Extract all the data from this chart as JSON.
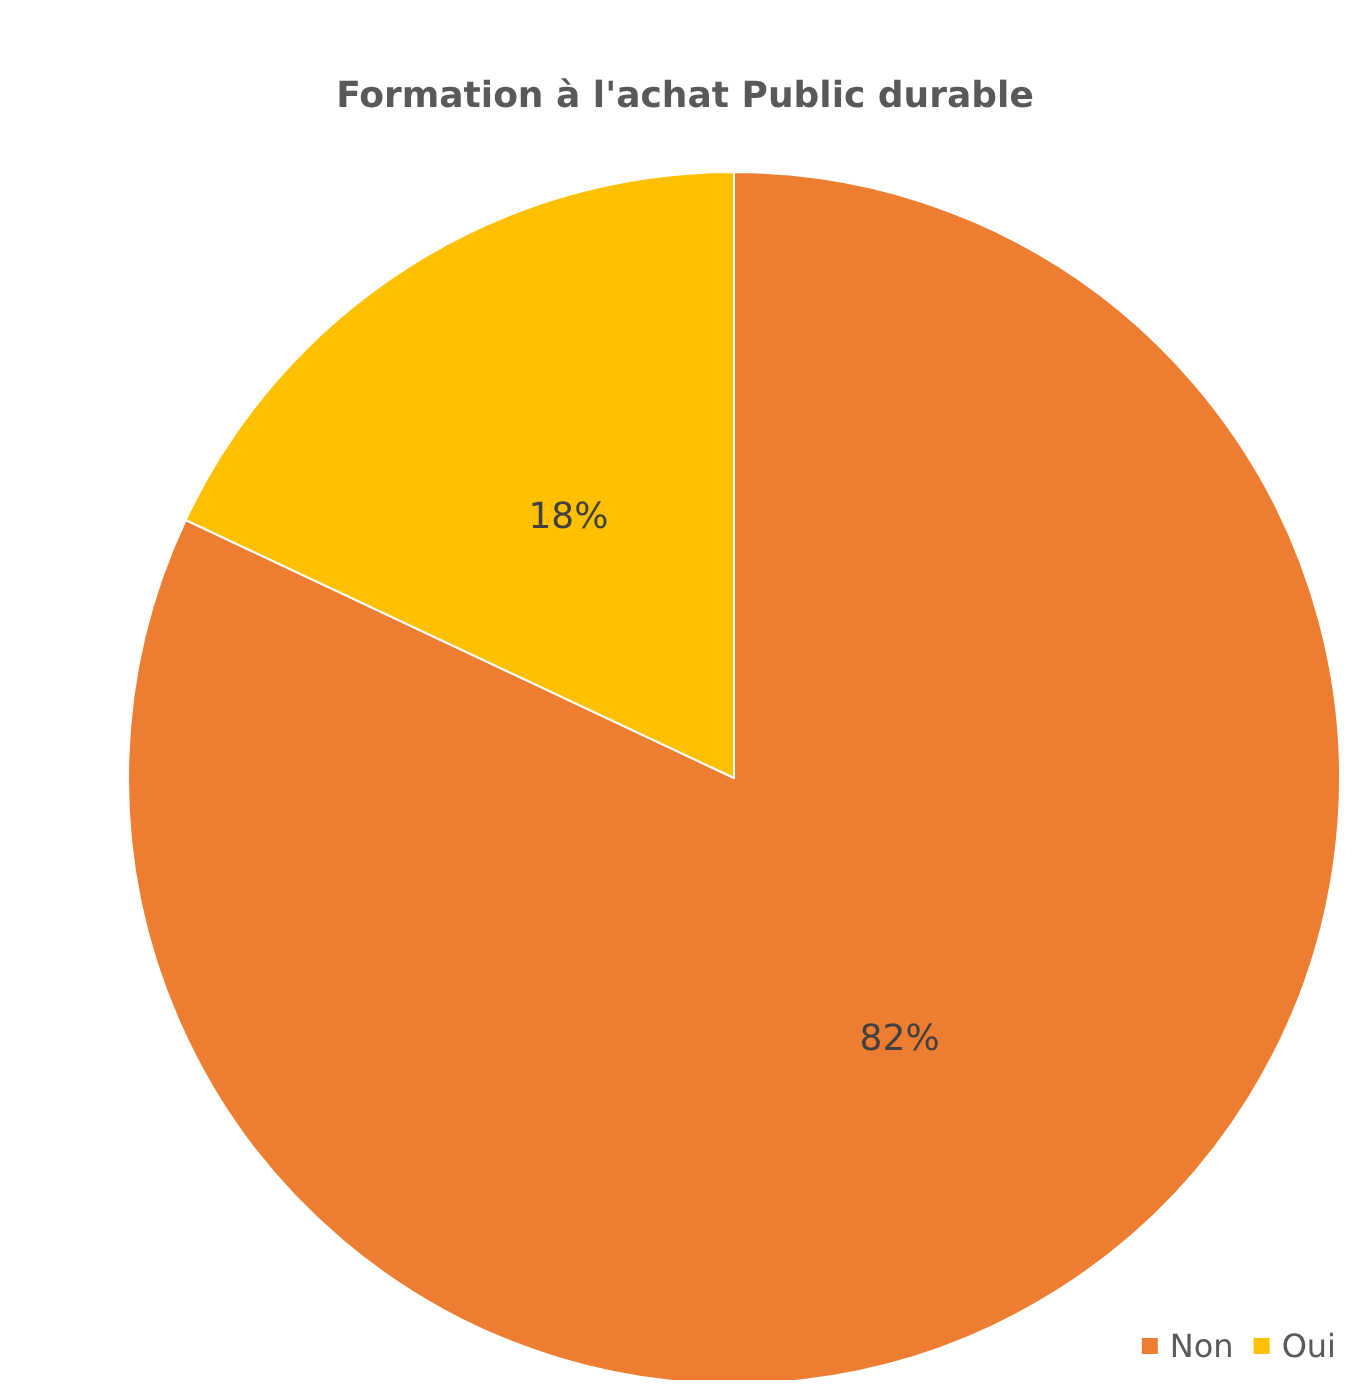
{
  "chart_data": {
    "type": "pie",
    "title": "Formation à l'achat Public durable",
    "categories": [
      "Non",
      "Oui"
    ],
    "values": [
      82,
      18
    ],
    "value_labels": [
      "82%",
      "18%"
    ],
    "colors": [
      "#ed7d31",
      "#ffc000"
    ],
    "legend": "bottom right"
  }
}
